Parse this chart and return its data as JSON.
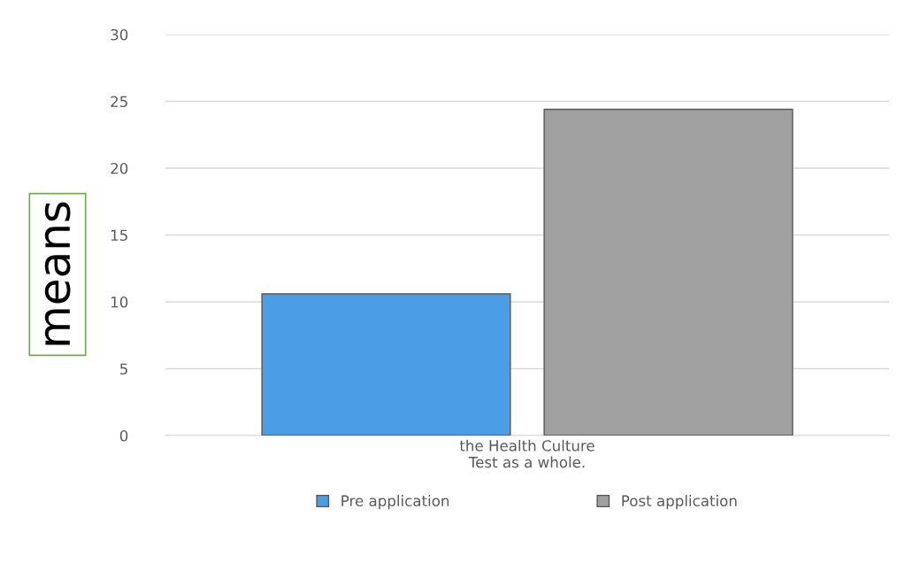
{
  "chart_data": {
    "type": "bar",
    "ylabel": "means",
    "categories": [
      "the Health Culture\nTest as a whole."
    ],
    "series": [
      {
        "name": "Pre application",
        "color": "#4a9ee6",
        "values": [
          10.6
        ]
      },
      {
        "name": "Post application",
        "color": "#a0a0a0",
        "values": [
          24.4
        ]
      }
    ],
    "ylim": [
      0,
      30
    ],
    "yticks": [
      0,
      5,
      10,
      15,
      20,
      25,
      30
    ],
    "grid": "y",
    "legend": "bottom"
  }
}
